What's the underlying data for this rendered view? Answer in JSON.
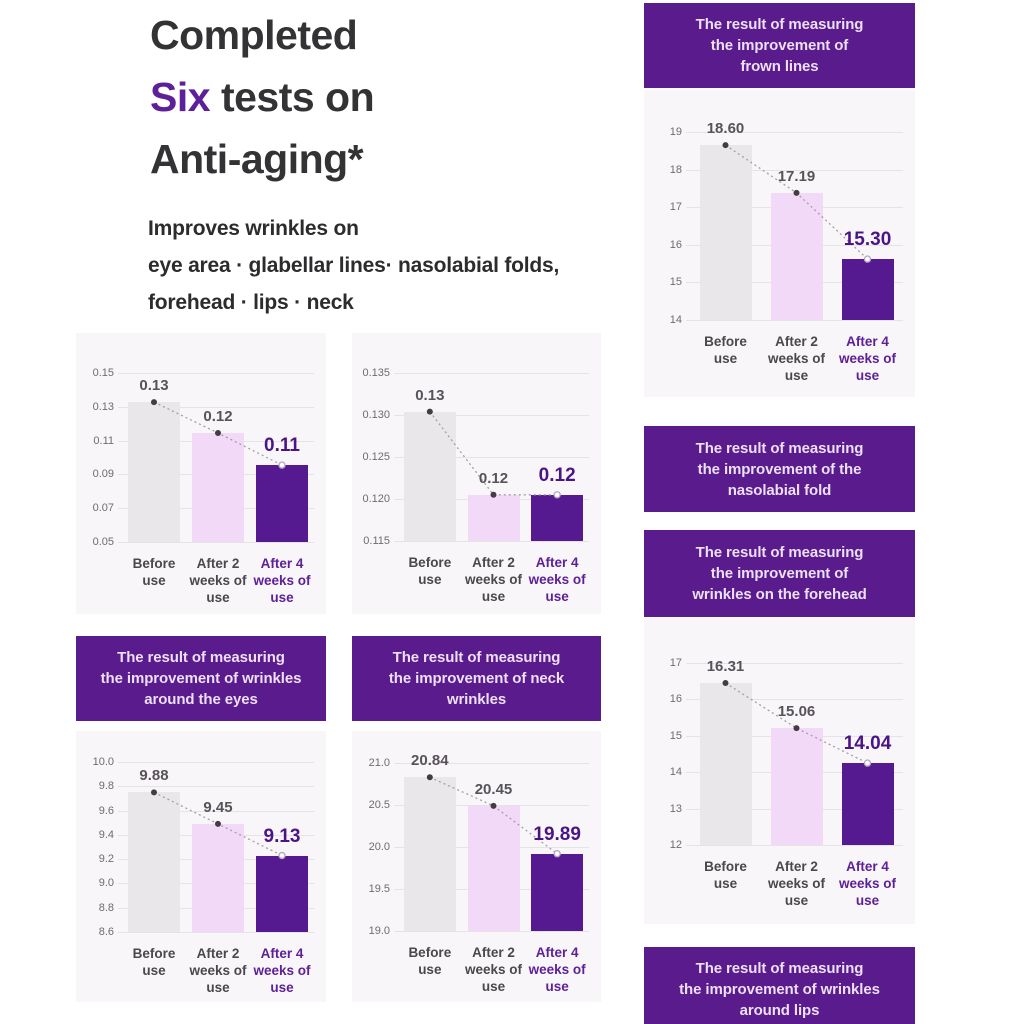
{
  "page": {
    "title_line1": "Completed",
    "title_line2_accent": "Six",
    "title_line2_rest": " tests on",
    "title_line3": "Anti-aging*",
    "subtitle_line1": "Improves wrinkles on",
    "subtitle_line2": "eye area · glabellar lines· nasolabial folds,",
    "subtitle_line3": "forehead · lips · neck"
  },
  "colors": {
    "accent": "#5e2098",
    "header_bg": "#5a1b8c",
    "card_bg": "#f8f6f8",
    "grid": "#e6e3e6",
    "tick_text": "#6f6b70",
    "value_text": "#58535a",
    "xlabel_text": "#4b474c",
    "final_label": "#4a1486",
    "title_text": "#333235",
    "subtitle_text": "#2c2b2d",
    "bar_before": "#e9e7e9",
    "bar_week2": "#f3d9f8",
    "bar_week4": "#551a8f",
    "dot_fill": "#413d42",
    "line": "#a39fa4"
  },
  "headers": {
    "frown": {
      "l1": "The result of measuring",
      "l2": "the improvement of",
      "l3": "frown lines"
    },
    "eyes": {
      "l1": "The result of measuring",
      "l2": "the improvement of wrinkles",
      "l3": "around the eyes"
    },
    "neck": {
      "l1": "The result of measuring",
      "l2": "the improvement of neck",
      "l3": "wrinkles"
    },
    "nasolabial": {
      "l1": "The result of measuring",
      "l2": "the improvement of the",
      "l3": "nasolabial fold"
    },
    "forehead": {
      "l1": "The result of measuring",
      "l2": "the improvement of",
      "l3": "wrinkles on the forehead"
    },
    "lips": {
      "l1": "The result of measuring",
      "l2": "the improvement of wrinkles",
      "l3": "around lips"
    }
  },
  "x_categories": [
    [
      "Before",
      "use"
    ],
    [
      "After 2",
      "weeks of",
      "use"
    ],
    [
      "After 4",
      "weeks of",
      "use"
    ]
  ],
  "chart_data": [
    {
      "id": "top-left",
      "type": "bar",
      "title": "",
      "categories": [
        "Before use",
        "After 2 weeks of use",
        "After 4 weeks of use"
      ],
      "values": [
        0.13,
        0.12,
        0.11
      ],
      "value_labels": [
        "0.13",
        "0.12",
        "0.11"
      ],
      "bar_tops": [
        0.1328,
        0.1145,
        0.0955
      ],
      "yticks": [
        "0.15",
        "0.13",
        "0.11",
        "0.09",
        "0.07",
        "0.05"
      ],
      "ymin": 0.05,
      "ymax": 0.15,
      "grid": true,
      "legend": "none"
    },
    {
      "id": "top-middle",
      "type": "bar",
      "title": "",
      "categories": [
        "Before use",
        "After 2 weeks of use",
        "After 4 weeks of use"
      ],
      "values": [
        0.13,
        0.12,
        0.12
      ],
      "value_labels": [
        "0.13",
        "0.12",
        "0.12"
      ],
      "bar_tops": [
        0.1304,
        0.1205,
        0.1205
      ],
      "yticks": [
        "0.135",
        "0.130",
        "0.125",
        "0.120",
        "0.115"
      ],
      "ymin": 0.115,
      "ymax": 0.135,
      "grid": true,
      "legend": "none"
    },
    {
      "id": "frown-lines",
      "type": "bar",
      "title": "The result of measuring the improvement of frown lines",
      "categories": [
        "Before use",
        "After 2 weeks of use",
        "After 4 weeks of use"
      ],
      "values": [
        18.6,
        17.19,
        15.3
      ],
      "value_labels": [
        "18.60",
        "17.19",
        "15.30"
      ],
      "bar_tops": [
        18.65,
        17.38,
        15.62
      ],
      "yticks": [
        "19",
        "18",
        "17",
        "16",
        "15",
        "14"
      ],
      "ymin": 14,
      "ymax": 19,
      "grid": true,
      "legend": "none"
    },
    {
      "id": "eyes",
      "type": "bar",
      "title": "The result of measuring the improvement of wrinkles around the eyes",
      "categories": [
        "Before use",
        "After 2 weeks of use",
        "After 4 weeks of use"
      ],
      "values": [
        9.88,
        9.45,
        9.13
      ],
      "value_labels": [
        "9.88",
        "9.45",
        "9.13"
      ],
      "bar_tops": [
        9.75,
        9.49,
        9.23
      ],
      "yticks": [
        "10.0",
        "9.8",
        "9.6",
        "9.4",
        "9.2",
        "9.0",
        "8.8",
        "8.6"
      ],
      "ymin": 8.6,
      "ymax": 10.0,
      "grid": true,
      "legend": "none"
    },
    {
      "id": "neck",
      "type": "bar",
      "title": "The result of measuring the improvement of neck wrinkles",
      "categories": [
        "Before use",
        "After 2 weeks of use",
        "After 4 weeks of use"
      ],
      "values": [
        20.84,
        20.45,
        19.89
      ],
      "value_labels": [
        "20.84",
        "20.45",
        "19.89"
      ],
      "bar_tops": [
        20.83,
        20.49,
        19.92
      ],
      "yticks": [
        "21.0",
        "20.5",
        "20.0",
        "19.5",
        "19.0"
      ],
      "ymin": 19.0,
      "ymax": 21.0,
      "grid": true,
      "legend": "none"
    },
    {
      "id": "forehead",
      "type": "bar",
      "title": "The result of measuring the improvement of wrinkles on the forehead",
      "categories": [
        "Before use",
        "After 2 weeks of use",
        "After 4 weeks of use"
      ],
      "values": [
        16.31,
        15.06,
        14.04
      ],
      "value_labels": [
        "16.31",
        "15.06",
        "14.04"
      ],
      "bar_tops": [
        16.45,
        15.21,
        14.25
      ],
      "yticks": [
        "17",
        "16",
        "15",
        "14",
        "13",
        "12"
      ],
      "ymin": 12,
      "ymax": 17,
      "grid": true,
      "legend": "none"
    }
  ]
}
